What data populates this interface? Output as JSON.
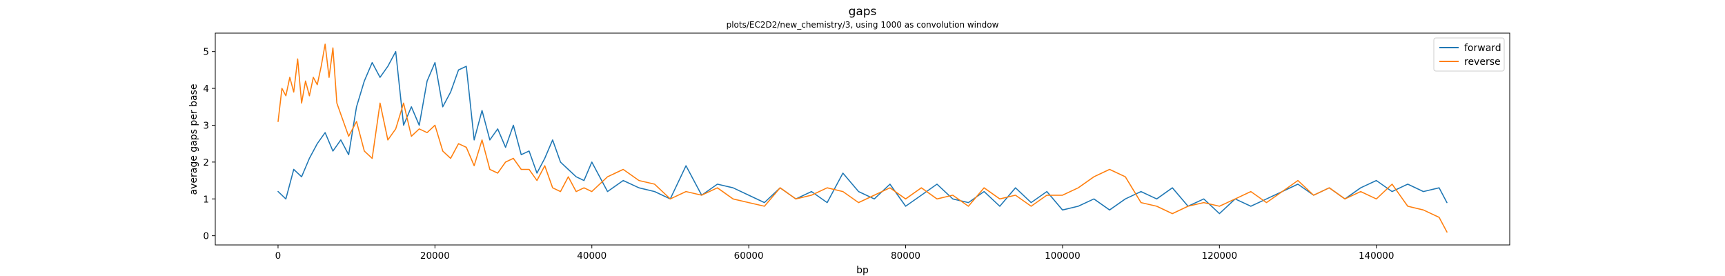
{
  "chart_data": {
    "type": "line",
    "title": "gaps",
    "subtitle": "plots/EC2D2/new_chemistry/3, using 1000 as convolution window",
    "xlabel": "bp",
    "ylabel": "average gaps per base",
    "xlim": [
      -8000,
      157000
    ],
    "ylim": [
      -0.25,
      5.5
    ],
    "xticks": [
      0,
      20000,
      40000,
      60000,
      80000,
      100000,
      120000,
      140000
    ],
    "yticks": [
      0,
      1,
      2,
      3,
      4,
      5
    ],
    "grid": false,
    "legend_position": "upper right",
    "series": [
      {
        "name": "forward",
        "color": "#1f77b4",
        "x": [
          0,
          1000,
          2000,
          3000,
          4000,
          5000,
          6000,
          7000,
          8000,
          9000,
          10000,
          11000,
          12000,
          13000,
          14000,
          15000,
          16000,
          17000,
          18000,
          19000,
          20000,
          21000,
          22000,
          23000,
          24000,
          25000,
          26000,
          27000,
          28000,
          29000,
          30000,
          31000,
          32000,
          33000,
          34000,
          35000,
          36000,
          37000,
          38000,
          39000,
          40000,
          42000,
          44000,
          46000,
          48000,
          50000,
          52000,
          54000,
          56000,
          58000,
          60000,
          62000,
          64000,
          66000,
          68000,
          70000,
          72000,
          74000,
          76000,
          78000,
          80000,
          82000,
          84000,
          86000,
          88000,
          90000,
          92000,
          94000,
          96000,
          98000,
          100000,
          102000,
          104000,
          106000,
          108000,
          110000,
          112000,
          114000,
          116000,
          118000,
          120000,
          122000,
          124000,
          126000,
          128000,
          130000,
          132000,
          134000,
          136000,
          138000,
          140000,
          142000,
          144000,
          146000,
          148000,
          149000
        ],
        "y": [
          1.2,
          1.0,
          1.8,
          1.6,
          2.1,
          2.5,
          2.8,
          2.3,
          2.6,
          2.2,
          3.5,
          4.2,
          4.7,
          4.3,
          4.6,
          5.0,
          3.0,
          3.5,
          3.0,
          4.2,
          4.7,
          3.5,
          3.9,
          4.5,
          4.6,
          2.6,
          3.4,
          2.6,
          2.9,
          2.4,
          3.0,
          2.2,
          2.3,
          1.7,
          2.1,
          2.6,
          2.0,
          1.8,
          1.6,
          1.5,
          2.0,
          1.2,
          1.5,
          1.3,
          1.2,
          1.0,
          1.9,
          1.1,
          1.4,
          1.3,
          1.1,
          0.9,
          1.3,
          1.0,
          1.2,
          0.9,
          1.7,
          1.2,
          1.0,
          1.4,
          0.8,
          1.1,
          1.4,
          1.0,
          0.9,
          1.2,
          0.8,
          1.3,
          0.9,
          1.2,
          0.7,
          0.8,
          1.0,
          0.7,
          1.0,
          1.2,
          1.0,
          1.3,
          0.8,
          1.0,
          0.6,
          1.0,
          0.8,
          1.0,
          1.2,
          1.4,
          1.1,
          1.3,
          1.0,
          1.3,
          1.5,
          1.2,
          1.4,
          1.2,
          1.3,
          0.9
        ]
      },
      {
        "name": "reverse",
        "color": "#ff7f0e",
        "x": [
          0,
          500,
          1000,
          1500,
          2000,
          2500,
          3000,
          3500,
          4000,
          4500,
          5000,
          5500,
          6000,
          6500,
          7000,
          7500,
          8000,
          9000,
          10000,
          11000,
          12000,
          13000,
          14000,
          15000,
          16000,
          17000,
          18000,
          19000,
          20000,
          21000,
          22000,
          23000,
          24000,
          25000,
          26000,
          27000,
          28000,
          29000,
          30000,
          31000,
          32000,
          33000,
          34000,
          35000,
          36000,
          37000,
          38000,
          39000,
          40000,
          42000,
          44000,
          46000,
          48000,
          50000,
          52000,
          54000,
          56000,
          58000,
          60000,
          62000,
          64000,
          66000,
          68000,
          70000,
          72000,
          74000,
          76000,
          78000,
          80000,
          82000,
          84000,
          86000,
          88000,
          90000,
          92000,
          94000,
          96000,
          98000,
          100000,
          102000,
          104000,
          106000,
          108000,
          110000,
          112000,
          114000,
          116000,
          118000,
          120000,
          122000,
          124000,
          126000,
          128000,
          130000,
          132000,
          134000,
          136000,
          138000,
          140000,
          142000,
          144000,
          146000,
          148000,
          149000
        ],
        "y": [
          3.1,
          4.0,
          3.8,
          4.3,
          3.9,
          4.8,
          3.6,
          4.2,
          3.8,
          4.3,
          4.1,
          4.6,
          5.2,
          4.3,
          5.1,
          3.6,
          3.3,
          2.7,
          3.1,
          2.3,
          2.1,
          3.6,
          2.6,
          2.9,
          3.6,
          2.7,
          2.9,
          2.8,
          3.0,
          2.3,
          2.1,
          2.5,
          2.4,
          1.9,
          2.6,
          1.8,
          1.7,
          2.0,
          2.1,
          1.8,
          1.8,
          1.5,
          1.9,
          1.3,
          1.2,
          1.6,
          1.2,
          1.3,
          1.2,
          1.6,
          1.8,
          1.5,
          1.4,
          1.0,
          1.2,
          1.1,
          1.3,
          1.0,
          0.9,
          0.8,
          1.3,
          1.0,
          1.1,
          1.3,
          1.2,
          0.9,
          1.1,
          1.3,
          1.0,
          1.3,
          1.0,
          1.1,
          0.8,
          1.3,
          1.0,
          1.1,
          0.8,
          1.1,
          1.1,
          1.3,
          1.6,
          1.8,
          1.6,
          0.9,
          0.8,
          0.6,
          0.8,
          0.9,
          0.8,
          1.0,
          1.2,
          0.9,
          1.2,
          1.5,
          1.1,
          1.3,
          1.0,
          1.2,
          1.0,
          1.4,
          0.8,
          0.7,
          0.5,
          0.1
        ]
      }
    ]
  }
}
